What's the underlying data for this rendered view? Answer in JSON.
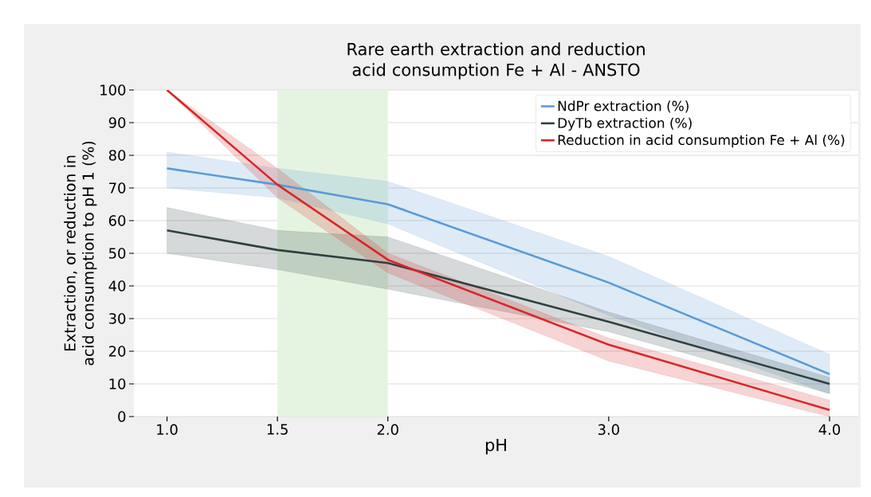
{
  "chart_data": {
    "type": "line",
    "title": "Rare earth extraction and reduction acid consumption Fe + Al - ANSTO",
    "xlabel": "pH",
    "ylabel": "Extraction, or reduction in acid consumption to pH 1 (%)",
    "x": [
      1,
      1.5,
      2,
      3,
      4
    ],
    "series": [
      {
        "name": "NdPr extraction (%)",
        "color": "#5b9bd5",
        "values": [
          76,
          71,
          65,
          41,
          13
        ],
        "lower": [
          70,
          67,
          59,
          31,
          7
        ],
        "upper": [
          81,
          76,
          72,
          49,
          19
        ]
      },
      {
        "name": "DyTb extraction (%)",
        "color": "#2f4040",
        "values": [
          57,
          51,
          47,
          29,
          10
        ],
        "lower": [
          50,
          45,
          39,
          26,
          7
        ],
        "upper": [
          64,
          57,
          55,
          32,
          12
        ]
      },
      {
        "name": "Reduction in acid consumption Fe + Al (%)",
        "color": "#d62728",
        "values": [
          100,
          71,
          48,
          22,
          2
        ],
        "lower": [
          100,
          67,
          44,
          17,
          0
        ],
        "upper": [
          100,
          76,
          50,
          24,
          5
        ]
      }
    ],
    "bands": [
      {
        "axis": "x",
        "from": 1.5,
        "to": 2.0,
        "color": "#e5f4e0"
      }
    ],
    "xlim": [
      0.85,
      4.13
    ],
    "ylim": [
      0,
      100
    ],
    "xticks": [
      {
        "value": 1,
        "label": "1.0"
      },
      {
        "value": 1.5,
        "label": "1.5"
      },
      {
        "value": 2,
        "label": "2.0"
      },
      {
        "value": 3,
        "label": "3.0"
      },
      {
        "value": 4,
        "label": "4.0"
      }
    ],
    "yticks": [
      0,
      10,
      20,
      30,
      40,
      50,
      60,
      70,
      80,
      90,
      100
    ],
    "grid": "y",
    "legend": "top right"
  }
}
